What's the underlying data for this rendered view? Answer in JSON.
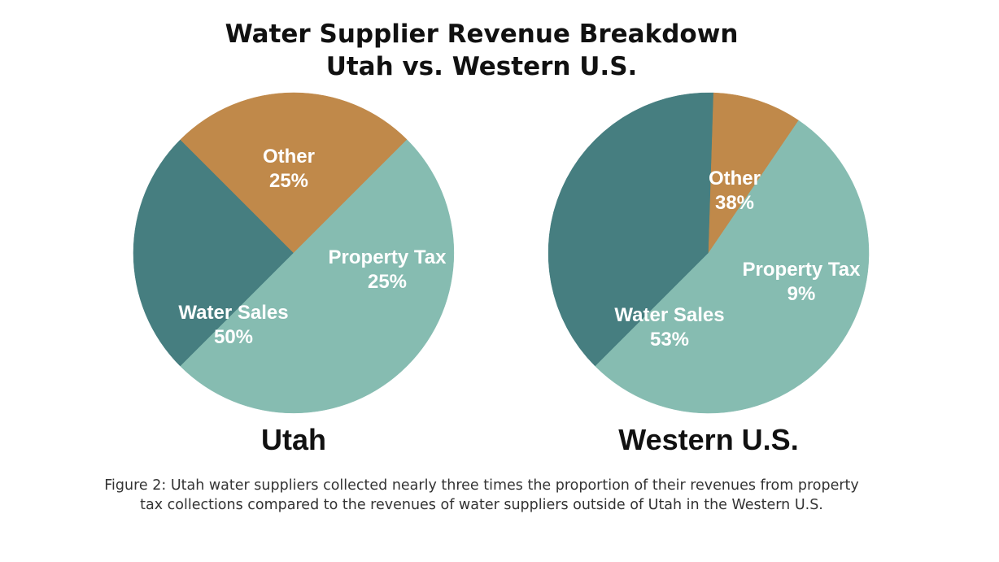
{
  "colors": {
    "water_sales": "#86bcb1",
    "other": "#467e80",
    "property_tax": "#c0894a",
    "label_text": "#ffffff"
  },
  "chart_data": [
    {
      "type": "pie",
      "title": "Utah",
      "slices": [
        {
          "name": "Other",
          "value": 25,
          "label": "25%",
          "color": "#467e80"
        },
        {
          "name": "Property Tax",
          "value": 25,
          "label": "25%",
          "color": "#c0894a"
        },
        {
          "name": "Water Sales",
          "value": 50,
          "label": "50%",
          "color": "#86bcb1"
        }
      ]
    },
    {
      "type": "pie",
      "title": "Western U.S.",
      "slices": [
        {
          "name": "Other",
          "value": 38,
          "label": "38%",
          "color": "#467e80"
        },
        {
          "name": "Property Tax",
          "value": 9,
          "label": "9%",
          "color": "#c0894a"
        },
        {
          "name": "Water Sales",
          "value": 53,
          "label": "53%",
          "color": "#86bcb1"
        }
      ]
    }
  ],
  "header": {
    "title_line1": "Water Supplier Revenue Breakdown",
    "title_line2": "Utah vs. Western U.S."
  },
  "caption": {
    "line1": "Figure 2: Utah water suppliers collected nearly three times the proportion of their revenues from property",
    "line2": "tax collections compared to the revenues of water suppliers outside of Utah in the Western U.S."
  }
}
